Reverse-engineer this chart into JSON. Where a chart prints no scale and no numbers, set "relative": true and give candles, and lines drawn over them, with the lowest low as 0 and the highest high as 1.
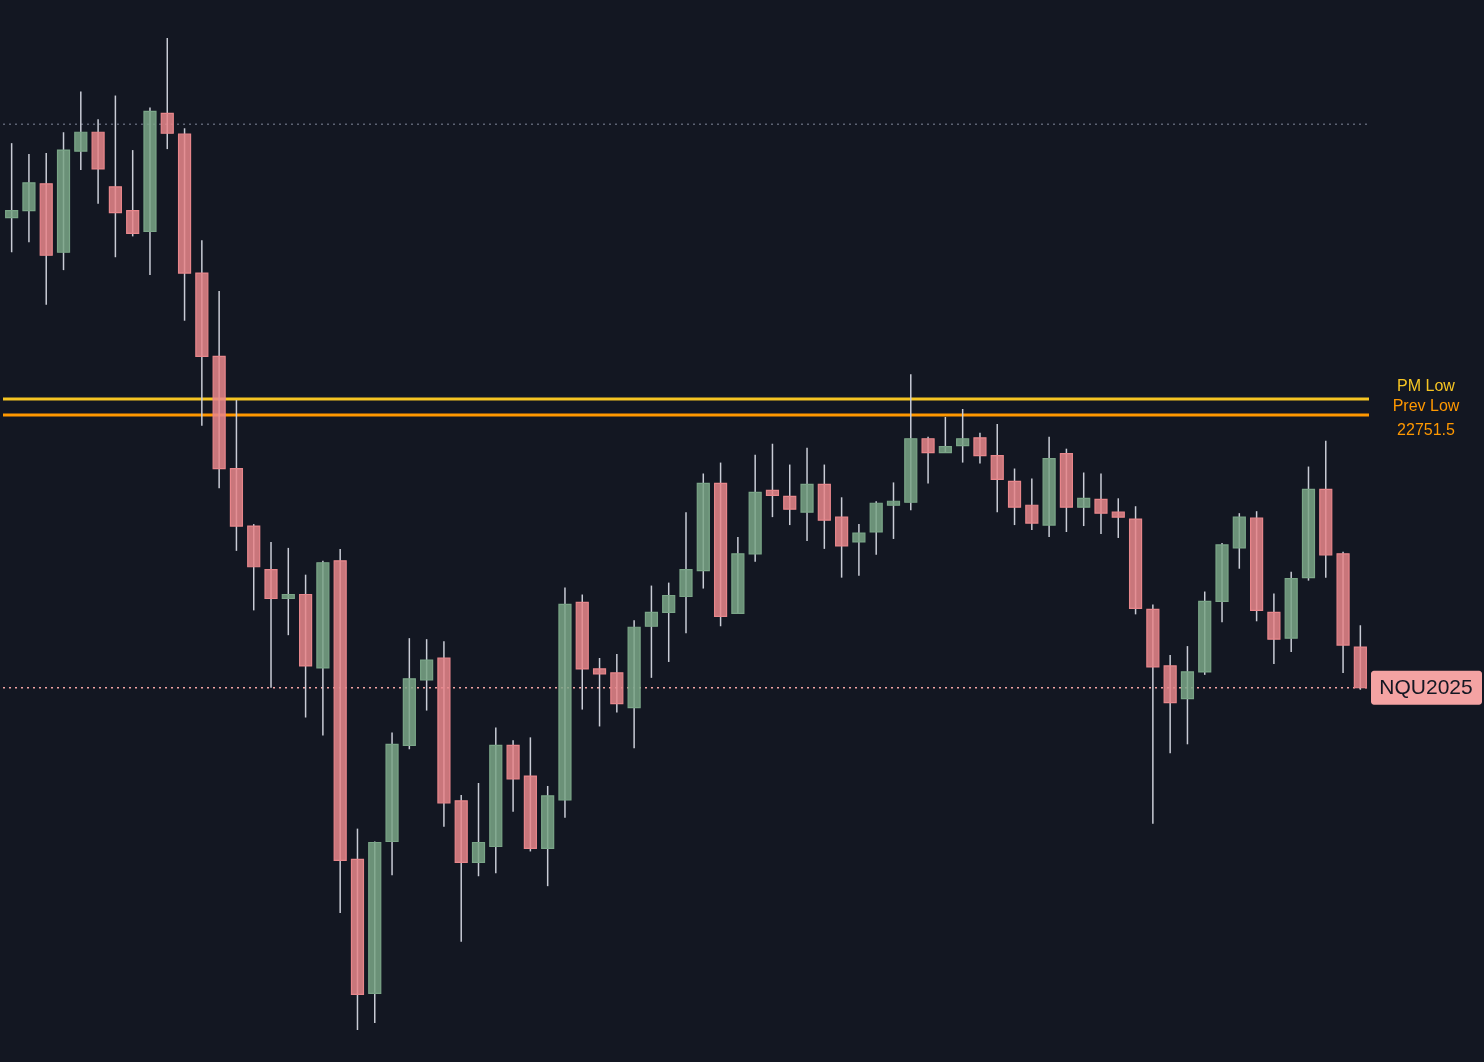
{
  "chart_data": {
    "type": "candlestick",
    "relative": true,
    "categories": [
      null,
      null,
      null,
      null,
      null,
      null,
      null,
      null,
      null,
      null,
      null,
      null,
      null,
      null,
      null,
      null,
      null,
      null,
      null,
      null,
      null,
      null,
      null,
      null,
      null,
      null,
      null,
      null,
      null,
      null,
      null,
      null,
      null,
      null,
      null,
      null,
      null,
      null,
      null,
      null,
      null,
      null,
      null,
      null,
      null,
      null,
      null,
      null,
      null,
      null,
      null,
      null,
      null,
      null,
      null,
      null,
      null,
      null,
      null,
      null,
      null,
      null,
      null,
      null,
      null,
      null,
      null,
      null,
      null,
      null,
      null,
      null,
      null,
      null,
      null,
      null,
      null,
      null,
      null
    ],
    "ohlc": [
      [
        0.819,
        0.894,
        0.784,
        0.826
      ],
      [
        0.826,
        0.883,
        0.794,
        0.854
      ],
      [
        0.853,
        0.884,
        0.731,
        0.781
      ],
      [
        0.784,
        0.905,
        0.766,
        0.887
      ],
      [
        0.886,
        0.946,
        0.867,
        0.905
      ],
      [
        0.905,
        0.918,
        0.833,
        0.868
      ],
      [
        0.85,
        0.942,
        0.779,
        0.824
      ],
      [
        0.826,
        0.887,
        0.8,
        0.803
      ],
      [
        0.805,
        0.93,
        0.761,
        0.926
      ],
      [
        0.924,
        1.0,
        0.888,
        0.904
      ],
      [
        0.903,
        0.909,
        0.715,
        0.763
      ],
      [
        0.763,
        0.796,
        0.609,
        0.679
      ],
      [
        0.679,
        0.745,
        0.546,
        0.566
      ],
      [
        0.566,
        0.635,
        0.483,
        0.508
      ],
      [
        0.508,
        0.51,
        0.423,
        0.467
      ],
      [
        0.464,
        0.492,
        0.345,
        0.435
      ],
      [
        0.435,
        0.486,
        0.398,
        0.439
      ],
      [
        0.439,
        0.459,
        0.315,
        0.367
      ],
      [
        0.365,
        0.473,
        0.297,
        0.471
      ],
      [
        0.473,
        0.485,
        0.118,
        0.171
      ],
      [
        0.172,
        0.203,
        0,
        0.036
      ],
      [
        0.037,
        0.19,
        0.007,
        0.189
      ],
      [
        0.19,
        0.3,
        0.156,
        0.288
      ],
      [
        0.287,
        0.395,
        0.283,
        0.354
      ],
      [
        0.353,
        0.394,
        0.322,
        0.373
      ],
      [
        0.375,
        0.392,
        0.205,
        0.229
      ],
      [
        0.231,
        0.237,
        0.089,
        0.169
      ],
      [
        0.169,
        0.249,
        0.155,
        0.189
      ],
      [
        0.185,
        0.305,
        0.158,
        0.287
      ],
      [
        0.287,
        0.292,
        0.22,
        0.253
      ],
      [
        0.256,
        0.295,
        0.18,
        0.183
      ],
      [
        0.183,
        0.246,
        0.145,
        0.236
      ],
      [
        0.232,
        0.446,
        0.214,
        0.429
      ],
      [
        0.431,
        0.439,
        0.323,
        0.364
      ],
      [
        0.364,
        0.375,
        0.306,
        0.359
      ],
      [
        0.36,
        0.379,
        0.32,
        0.329
      ],
      [
        0.325,
        0.413,
        0.284,
        0.406
      ],
      [
        0.407,
        0.448,
        0.355,
        0.421
      ],
      [
        0.421,
        0.451,
        0.371,
        0.438
      ],
      [
        0.437,
        0.522,
        0.4,
        0.464
      ],
      [
        0.463,
        0.561,
        0.445,
        0.551
      ],
      [
        0.551,
        0.572,
        0.407,
        0.417
      ],
      [
        0.42,
        0.497,
        0.42,
        0.48
      ],
      [
        0.48,
        0.58,
        0.472,
        0.542
      ],
      [
        0.544,
        0.591,
        0.517,
        0.539
      ],
      [
        0.538,
        0.57,
        0.509,
        0.525
      ],
      [
        0.522,
        0.587,
        0.493,
        0.55
      ],
      [
        0.55,
        0.57,
        0.485,
        0.514
      ],
      [
        0.517,
        0.537,
        0.456,
        0.488
      ],
      [
        0.492,
        0.51,
        0.458,
        0.501
      ],
      [
        0.502,
        0.533,
        0.479,
        0.531
      ],
      [
        0.529,
        0.552,
        0.495,
        0.533
      ],
      [
        0.532,
        0.661,
        0.524,
        0.596
      ],
      [
        0.596,
        0.598,
        0.551,
        0.582
      ],
      [
        0.582,
        0.618,
        0.582,
        0.588
      ],
      [
        0.589,
        0.626,
        0.572,
        0.596
      ],
      [
        0.597,
        0.602,
        0.571,
        0.579
      ],
      [
        0.579,
        0.611,
        0.522,
        0.555
      ],
      [
        0.553,
        0.566,
        0.509,
        0.527
      ],
      [
        0.529,
        0.556,
        0.504,
        0.511
      ],
      [
        0.509,
        0.598,
        0.497,
        0.576
      ],
      [
        0.581,
        0.586,
        0.502,
        0.527
      ],
      [
        0.527,
        0.562,
        0.508,
        0.536
      ],
      [
        0.535,
        0.561,
        0.5,
        0.521
      ],
      [
        0.522,
        0.536,
        0.496,
        0.517
      ],
      [
        0.515,
        0.528,
        0.419,
        0.425
      ],
      [
        0.424,
        0.429,
        0.208,
        0.366
      ],
      [
        0.367,
        0.378,
        0.279,
        0.33
      ],
      [
        0.334,
        0.387,
        0.288,
        0.361
      ],
      [
        0.361,
        0.442,
        0.358,
        0.432
      ],
      [
        0.432,
        0.491,
        0.411,
        0.489
      ],
      [
        0.486,
        0.521,
        0.465,
        0.517
      ],
      [
        0.516,
        0.523,
        0.412,
        0.423
      ],
      [
        0.421,
        0.44,
        0.369,
        0.394
      ],
      [
        0.395,
        0.462,
        0.381,
        0.455
      ],
      [
        0.456,
        0.568,
        0.453,
        0.545
      ],
      [
        0.545,
        0.594,
        0.456,
        0.479
      ],
      [
        0.48,
        0.482,
        0.36,
        0.388
      ],
      [
        0.386,
        0.408,
        0.343,
        0.345
      ]
    ],
    "colors": [
      "#7aa587",
      "#7aa587",
      "#e8868b",
      "#7aa587",
      "#7aa587",
      "#e8868b",
      "#e8868b",
      "#e8868b",
      "#7aa587",
      "#e8868b",
      "#e8868b",
      "#e8868b",
      "#e8868b",
      "#e8868b",
      "#e8868b",
      "#e8868b",
      "#7aa587",
      "#e8868b",
      "#7aa587",
      "#e8868b",
      "#e8868b",
      "#7aa587",
      "#7aa587",
      "#7aa587",
      "#7aa587",
      "#e8868b",
      "#e8868b",
      "#7aa587",
      "#7aa587",
      "#e8868b",
      "#e8868b",
      "#7aa587",
      "#7aa587",
      "#e8868b",
      "#e8868b",
      "#e8868b",
      "#7aa587",
      "#7aa587",
      "#7aa587",
      "#7aa587",
      "#7aa587",
      "#e8868b",
      "#7aa587",
      "#7aa587",
      "#e8868b",
      "#e8868b",
      "#7aa587",
      "#e8868b",
      "#e8868b",
      "#7aa587",
      "#7aa587",
      "#7aa587",
      "#7aa587",
      "#e8868b",
      "#7aa587",
      "#7aa587",
      "#e8868b",
      "#e8868b",
      "#e8868b",
      "#e8868b",
      "#7aa587",
      "#e8868b",
      "#7aa587",
      "#e8868b",
      "#e8868b",
      "#e8868b",
      "#e8868b",
      "#e8868b",
      "#7aa587",
      "#7aa587",
      "#7aa587",
      "#7aa587",
      "#e8868b",
      "#e8868b",
      "#7aa587",
      "#7aa587",
      "#e8868b",
      "#e8868b",
      "#e8868b"
    ],
    "ref_lines": [
      {
        "axis": "y",
        "value": 0.913,
        "color": "#5c6272",
        "line_style": "dotted"
      },
      {
        "axis": "y",
        "value": 0.636,
        "label": "PM Low",
        "color": "#f6c523",
        "line_style": "solid"
      },
      {
        "axis": "y",
        "value": 0.62,
        "label": "Prev Low",
        "color": "#ff9800",
        "line_style": "solid"
      },
      {
        "axis": "y",
        "value": 0.345,
        "label": "NQU2025",
        "color": "#f4a3a3",
        "line_style": "dotted"
      }
    ],
    "annotations": [
      "22751.5"
    ]
  }
}
